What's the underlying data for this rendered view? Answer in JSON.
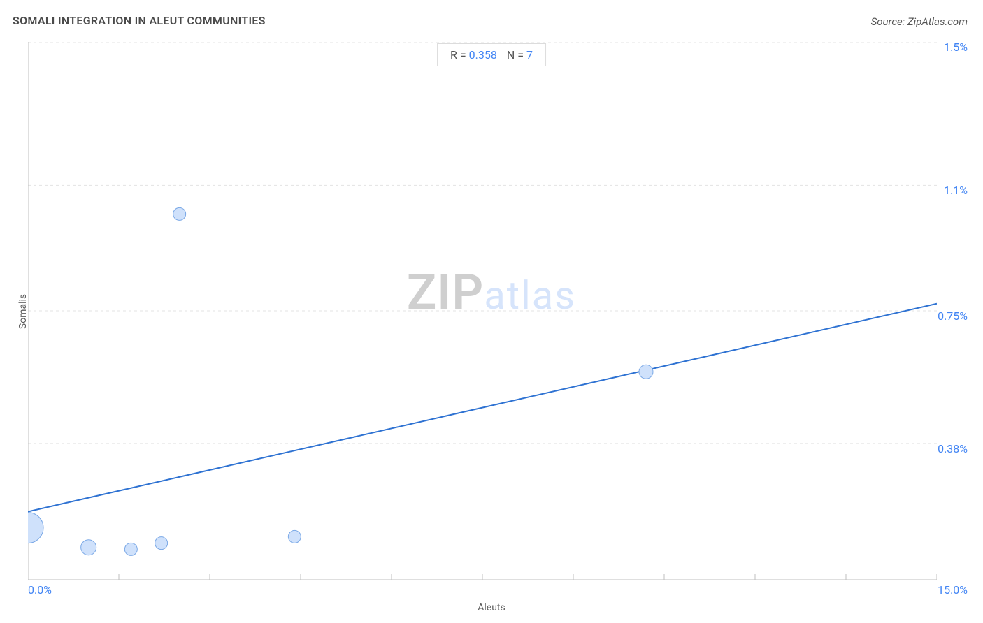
{
  "title": "SOMALI INTEGRATION IN ALEUT COMMUNITIES",
  "source": "Source: ZipAtlas.com",
  "watermark": {
    "zip": "ZIP",
    "atlas": "atlas"
  },
  "stats": {
    "r_label": "R = ",
    "r_value": "0.358",
    "n_label": "N = ",
    "n_value": "7"
  },
  "chart": {
    "type": "scatter",
    "xlabel": "Aleuts",
    "ylabel": "Somalis",
    "xlim": [
      0.0,
      15.0
    ],
    "ylim": [
      0.0,
      1.5
    ],
    "xtick_labels": {
      "min": "0.0%",
      "max": "15.0%"
    },
    "ytick_positions": [
      0.38,
      0.75,
      1.1,
      1.5
    ],
    "ytick_labels": [
      "0.38%",
      "0.75%",
      "1.1%",
      "1.5%"
    ],
    "x_minor_ticks": [
      0.0,
      1.5,
      3.0,
      4.5,
      6.0,
      7.5,
      9.0,
      10.5,
      12.0,
      13.5,
      15.0
    ],
    "grid_y_positions": [
      0.0,
      0.38,
      0.75,
      1.1,
      1.5
    ],
    "axis_color": "#bfbfbf",
    "grid_color": "#e3e3e3",
    "grid_dash": "4,4",
    "regression_line": {
      "x1": 0.0,
      "y1": 0.19,
      "x2": 15.0,
      "y2": 0.77,
      "color": "#2e72d2",
      "width": 2
    },
    "marker_fill": "#cfe1fb",
    "marker_stroke": "#7aa8e6",
    "marker_stroke_width": 1,
    "points": [
      {
        "x": 0.0,
        "y": 0.145,
        "r": 22
      },
      {
        "x": 1.0,
        "y": 0.09,
        "r": 11
      },
      {
        "x": 1.7,
        "y": 0.085,
        "r": 9
      },
      {
        "x": 2.2,
        "y": 0.102,
        "r": 9
      },
      {
        "x": 2.5,
        "y": 1.02,
        "r": 9
      },
      {
        "x": 4.4,
        "y": 0.12,
        "r": 9
      },
      {
        "x": 10.2,
        "y": 0.58,
        "r": 10
      }
    ],
    "background_color": "#ffffff",
    "tick_label_color": "#4285f4",
    "tick_label_fontsize": 16,
    "axis_label_color": "#5a5a5a",
    "axis_label_fontsize": 14,
    "title_color": "#4a4a4a",
    "title_fontsize": 16
  }
}
